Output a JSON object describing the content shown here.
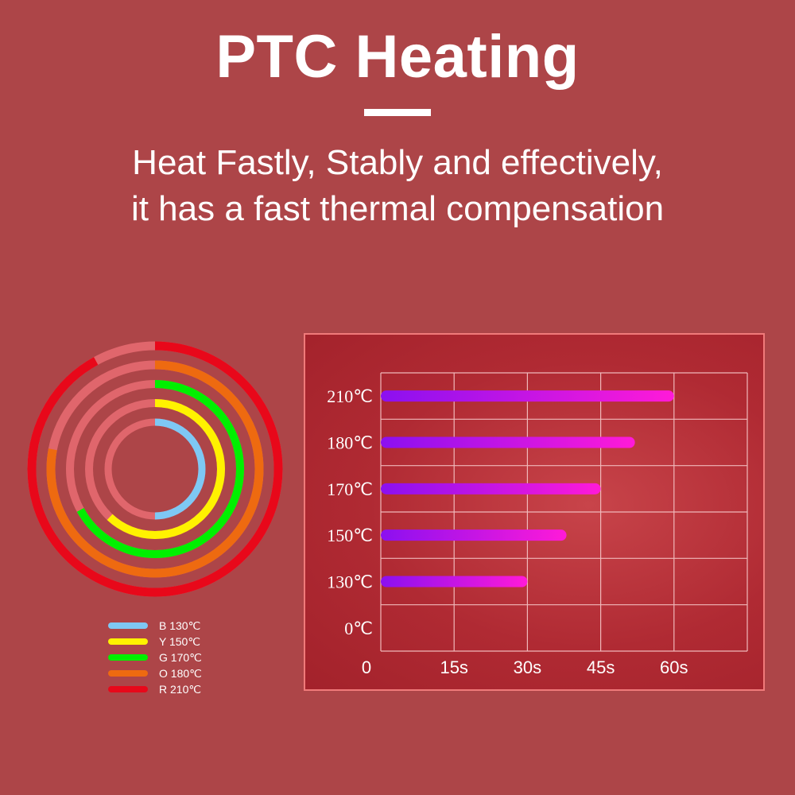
{
  "header": {
    "title": "PTC Heating",
    "subtitle_line1": "Heat Fastly, Stably and effectively,",
    "subtitle_line2": "it has a fast thermal compensation"
  },
  "legend": {
    "items": [
      {
        "label": "B 130℃",
        "color": "#7ec8f4"
      },
      {
        "label": "Y 150℃",
        "color": "#fff200"
      },
      {
        "label": "G 170℃",
        "color": "#00f000"
      },
      {
        "label": "O 180℃",
        "color": "#ee6a10"
      },
      {
        "label": "R 210℃",
        "color": "#e8081a"
      }
    ]
  },
  "chart_data": [
    {
      "type": "radial-progress",
      "series": [
        {
          "name": "B 130℃",
          "value": 0.5,
          "color": "#7ec8f4"
        },
        {
          "name": "Y 150℃",
          "value": 0.62,
          "color": "#fff200"
        },
        {
          "name": "G 170℃",
          "value": 0.67,
          "color": "#00f000"
        },
        {
          "name": "O 180℃",
          "value": 0.78,
          "color": "#ee6a10"
        },
        {
          "name": "R 210℃",
          "value": 0.92,
          "color": "#e8081a"
        }
      ],
      "track_color": "#e0666c"
    },
    {
      "type": "bar",
      "orientation": "horizontal",
      "categories": [
        "0℃",
        "130℃",
        "150℃",
        "170℃",
        "180℃",
        "210℃"
      ],
      "values": [
        0,
        30,
        38,
        45,
        52,
        60
      ],
      "x_ticks": [
        "0",
        "15s",
        "30s",
        "45s",
        "60s"
      ],
      "x_tick_values": [
        0,
        15,
        30,
        45,
        60
      ],
      "xlim": [
        0,
        75
      ],
      "gradient": [
        "#8b10f0",
        "#ff1ad8"
      ],
      "grid": true
    }
  ]
}
